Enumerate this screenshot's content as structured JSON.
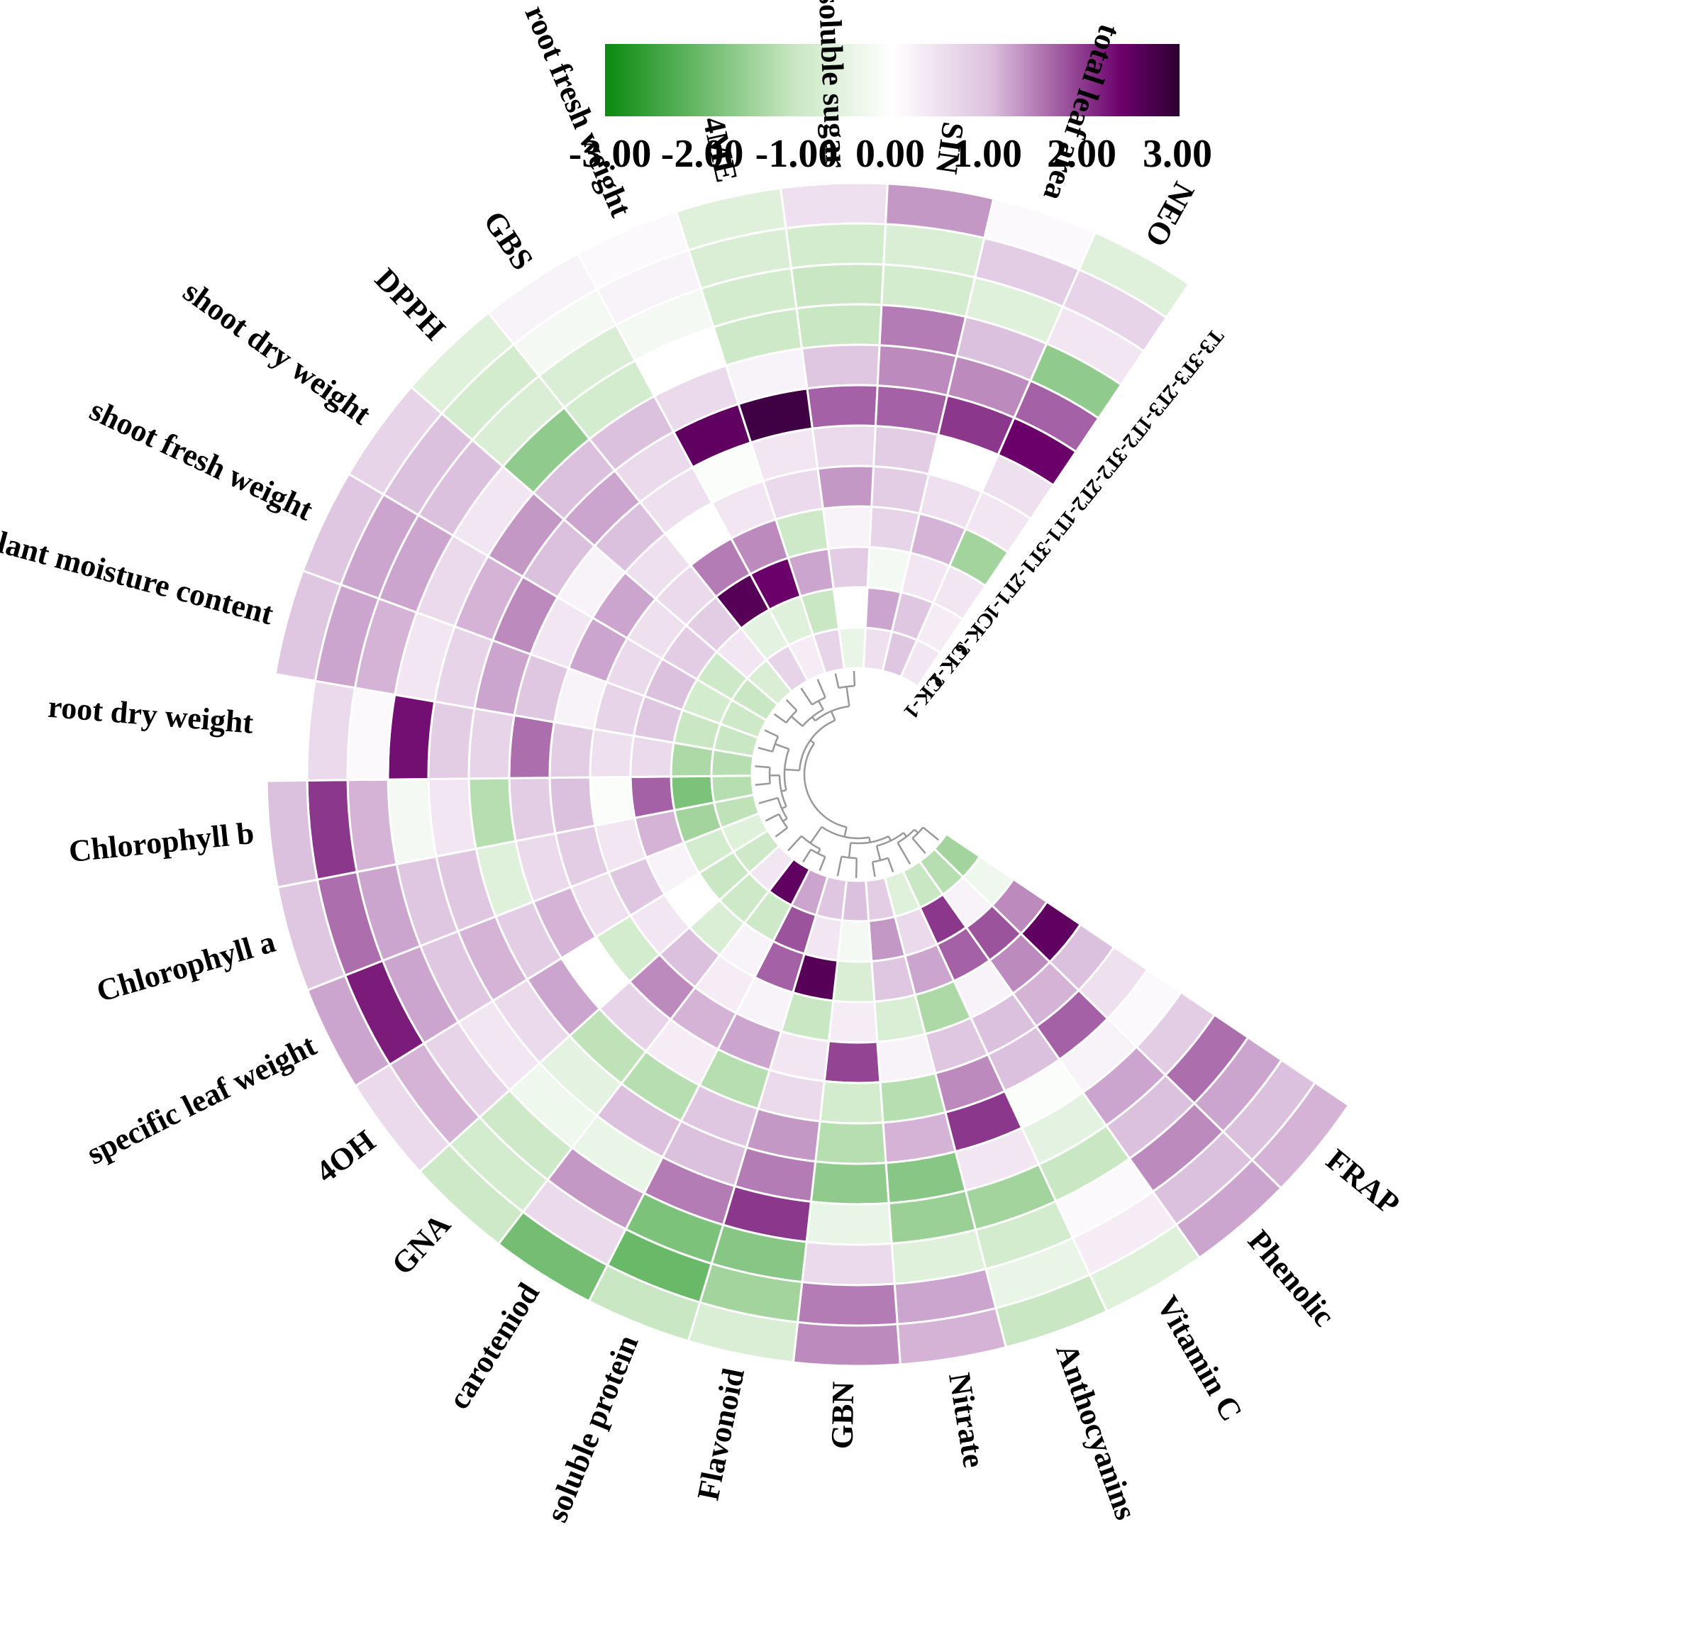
{
  "colors": {
    "negative": "#0b8a10",
    "light_negative": "#c9e7c2",
    "neutral": "#ffffff",
    "light_positive": "#dcc1de",
    "positive": "#6b006b",
    "max_positive": "#2b0030",
    "cell_border": "#ffffff",
    "dendrogram": "#999999"
  },
  "colorbar": {
    "ticks": [
      "-3.00",
      "-2.00",
      "-1.00",
      "0.00",
      "1.00",
      "2.00",
      "3.00"
    ],
    "min": -3,
    "max": 3
  },
  "chart_data": {
    "type": "heatmap",
    "layout": "circular",
    "value_range": [
      -3,
      3
    ],
    "samples": [
      "CK-1",
      "CK-2",
      "CK-3",
      "T1-1",
      "T1-2",
      "T1-3",
      "T2-1",
      "T2-2",
      "T2-3",
      "T3-1",
      "T3-2",
      "T3-3"
    ],
    "variables": [
      "FRAP",
      "Phenolic",
      "Vitamin C",
      "Anthocyanins",
      "Nitrate",
      "GBN",
      "Flavonoid",
      "soluble protein",
      "carotenoid",
      "GNA",
      "4OH",
      "specific leaf weight",
      "Chlorophyll a",
      "Chlorophyll b",
      "root dry weight",
      "plant moisture content",
      "shoot fresh weight",
      "shoot dry weight",
      "DPPH",
      "GBS",
      "root fresh weight",
      "4ME",
      "soluble sugar",
      "SIN",
      "total leaf area",
      "NEO"
    ],
    "variable_labels": [
      "FRAP",
      "Phenolic",
      "Vitamin C",
      "Anthocyanins",
      "Nitrate",
      "GBN",
      "Flavonoid",
      "soluble protein",
      "caroteniod",
      "GNA",
      "4OH",
      "specific leaf weight",
      "Chlorophyll a",
      "Chlorophyll b",
      "root dry weight",
      "plant moisture content",
      "shoot fresh weight",
      "shoot dry weight",
      "DPPH",
      "GBS",
      "root fresh weight",
      "4ME",
      "soluble sugar",
      "SIN",
      "total leaf area",
      "NEO"
    ],
    "values": [
      [
        -1.4,
        -0.3,
        1.4,
        2.5,
        1.0,
        0.5,
        0.1,
        0.8,
        1.6,
        1.2,
        1.0,
        1.1
      ],
      [
        -1.2,
        0.2,
        1.8,
        1.4,
        1.1,
        1.7,
        0.2,
        1.2,
        1.0,
        1.4,
        1.0,
        1.2
      ],
      [
        -1.0,
        2.0,
        1.7,
        0.2,
        1.0,
        1.0,
        -0.1,
        -0.5,
        -1.0,
        0.1,
        0.3,
        -0.6
      ],
      [
        -0.6,
        0.6,
        1.2,
        -1.3,
        0.9,
        1.4,
        2.0,
        0.4,
        -1.4,
        -0.8,
        -0.4,
        -1.0
      ],
      [
        0.8,
        1.3,
        0.9,
        -0.7,
        0.2,
        -1.2,
        1.1,
        -1.7,
        -1.5,
        -0.6,
        1.2,
        1.1
      ],
      [
        1.0,
        -0.2,
        -0.7,
        0.3,
        1.9,
        -0.8,
        -1.2,
        -1.6,
        -0.4,
        0.6,
        1.5,
        1.4
      ],
      [
        0.9,
        0.4,
        2.6,
        -1.0,
        0.4,
        0.6,
        1.3,
        1.5,
        2.0,
        -1.7,
        -1.4,
        -0.7
      ],
      [
        1.2,
        1.8,
        1.7,
        0.2,
        1.2,
        -1.2,
        0.9,
        1.0,
        1.5,
        -1.8,
        -2.0,
        -1.0
      ],
      [
        2.5,
        -0.9,
        0.2,
        0.3,
        1.1,
        0.3,
        -1.2,
        1.0,
        -0.4,
        1.3,
        0.6,
        -1.9
      ],
      [
        0.4,
        -0.9,
        -0.7,
        1.0,
        1.4,
        0.7,
        -1.1,
        -0.5,
        -0.3,
        -0.9,
        -0.8,
        -0.9
      ],
      [
        -0.9,
        -1.0,
        0.0,
        0.4,
        -0.8,
        0.0,
        1.2,
        0.6,
        0.4,
        0.7,
        1.1,
        0.6
      ],
      [
        -0.6,
        -0.8,
        0.2,
        0.9,
        0.5,
        1.1,
        0.8,
        1.1,
        0.9,
        1.2,
        2.2,
        1.2
      ],
      [
        -1.1,
        -1.4,
        1.1,
        0.4,
        0.8,
        0.6,
        -0.6,
        0.9,
        0.9,
        1.2,
        1.6,
        0.9
      ],
      [
        -1.2,
        -1.8,
        1.7,
        -0.1,
        1.0,
        0.8,
        -1.2,
        0.4,
        -0.2,
        1.1,
        2.0,
        1.0
      ],
      [
        -1.2,
        -1.3,
        0.6,
        0.5,
        0.8,
        1.6,
        0.7,
        0.8,
        2.3,
        0.1,
        0.6,
        0.0
      ],
      [
        -1.0,
        -1.0,
        0.9,
        0.7,
        0.2,
        0.9,
        1.2,
        0.7,
        0.4,
        1.1,
        1.2,
        0.9
      ],
      [
        -0.9,
        -0.8,
        1.0,
        0.6,
        1.2,
        0.4,
        1.4,
        1.1,
        0.6,
        1.2,
        1.2,
        0.9
      ],
      [
        -1.0,
        -0.9,
        0.8,
        0.5,
        1.2,
        0.2,
        1.0,
        1.3,
        0.4,
        1.0,
        1.0,
        0.7
      ],
      [
        -0.7,
        0.4,
        0.8,
        0.6,
        0.5,
        1.0,
        1.2,
        1.0,
        -1.6,
        -0.7,
        -0.8,
        -0.6
      ],
      [
        0.7,
        -0.5,
        2.6,
        1.5,
        0.0,
        0.5,
        0.6,
        1.0,
        -0.8,
        -0.7,
        -0.2,
        0.2
      ],
      [
        0.3,
        -0.6,
        2.4,
        1.4,
        0.4,
        -0.1,
        2.5,
        0.6,
        0.0,
        -0.2,
        0.2,
        0.1
      ],
      [
        0.7,
        -1.0,
        1.2,
        -0.9,
        0.6,
        0.4,
        2.8,
        0.2,
        -0.9,
        -0.8,
        -0.7,
        -0.6
      ],
      [
        -0.4,
        0.0,
        0.8,
        0.2,
        1.3,
        0.6,
        1.7,
        0.9,
        -1.0,
        -1.0,
        -0.8,
        0.5
      ],
      [
        0.5,
        1.2,
        -0.2,
        0.7,
        0.8,
        0.8,
        1.7,
        1.4,
        1.5,
        -0.8,
        -0.7,
        1.3
      ],
      [
        0.9,
        0.9,
        0.4,
        1.1,
        0.5,
        0.0,
        2.0,
        1.4,
        1.0,
        -0.6,
        0.8,
        0.1
      ],
      [
        0.4,
        0.3,
        0.4,
        -1.4,
        0.4,
        0.5,
        2.4,
        1.7,
        -1.6,
        0.4,
        0.7,
        -0.6
      ]
    ],
    "dendrogram": "variables"
  }
}
